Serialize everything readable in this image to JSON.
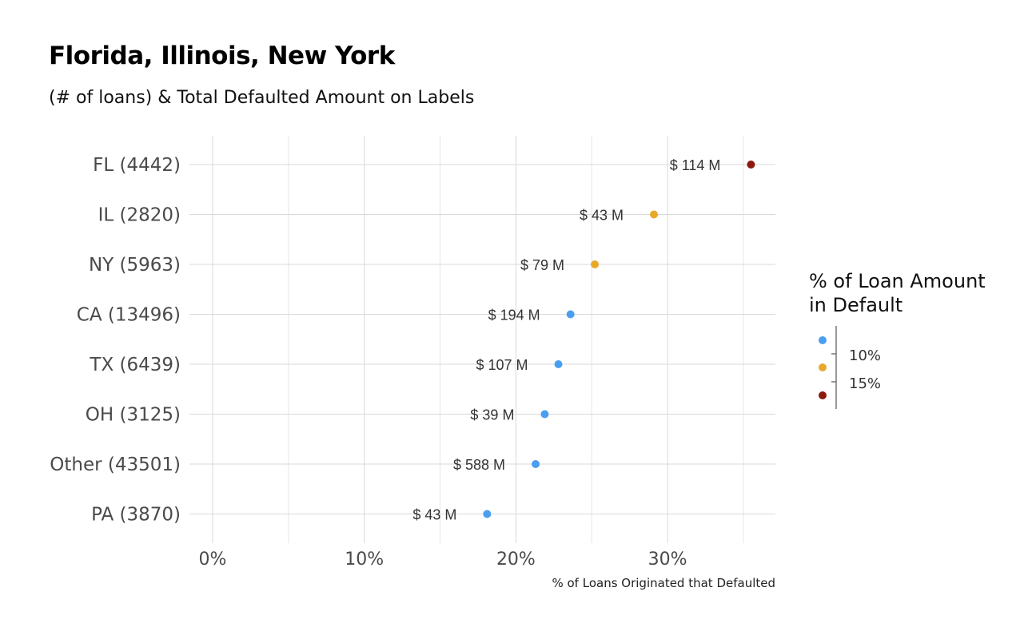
{
  "title": "Florida, Illinois, New York",
  "subtitle": "(# of loans) & Total Defaulted Amount on Labels",
  "chart_data": {
    "type": "scatter",
    "orientation": "horizontal-dot",
    "categories": [
      "FL (4442)",
      "IL (2820)",
      "NY (5963)",
      "CA (13496)",
      "TX (6439)",
      "OH (3125)",
      "Other (43501)",
      "PA (3870)"
    ],
    "values": [
      35.5,
      29.1,
      25.2,
      23.6,
      22.8,
      21.9,
      21.3,
      18.1
    ],
    "labels": [
      "$ 114 M",
      "$ 43 M",
      "$ 79 M",
      "$ 194 M",
      "$ 107 M",
      "$ 39 M",
      "$ 588 M",
      "$ 43 M"
    ],
    "color_values": [
      17.5,
      13.5,
      13.2,
      10.5,
      10.4,
      10.2,
      10.1,
      9.9
    ],
    "xlabel": "% of Loans Originated that Defaulted",
    "ylabel": "",
    "xlim": [
      0,
      37
    ],
    "xticks": [
      "0%",
      "10%",
      "20%",
      "30%"
    ],
    "xtick_values": [
      0,
      10,
      20,
      30
    ],
    "grid": true,
    "legend": {
      "title_lines": [
        "% of Loan Amount",
        "in Default"
      ],
      "placement": "right",
      "ticks": [
        "10%",
        "15%"
      ],
      "colors": [
        "#4a9ef0",
        "#e8a92a",
        "#8b1a0e"
      ]
    }
  }
}
